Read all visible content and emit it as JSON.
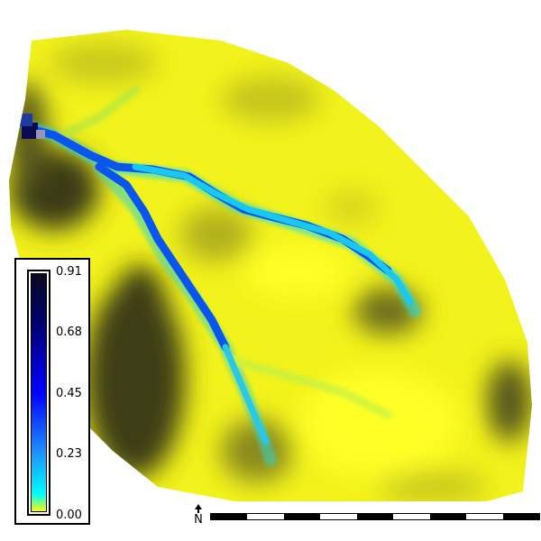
{
  "legend": {
    "labels": [
      "0.91",
      "0.68",
      "0.45",
      "0.23",
      "0.00"
    ],
    "ramp_colors": [
      "#0a0a1e",
      "#00006e",
      "#0000ff",
      "#1e90ff",
      "#00ffff",
      "#ffff00"
    ]
  },
  "north_arrow": {
    "label": "N"
  },
  "scale_bar": {
    "segments": 9
  },
  "colors": {
    "terrain_light": "#ffff1e",
    "terrain_mid": "#b4b41e",
    "terrain_dark": "#282814",
    "stream_main": "#0050f0",
    "stream_light": "#19dcf0"
  }
}
